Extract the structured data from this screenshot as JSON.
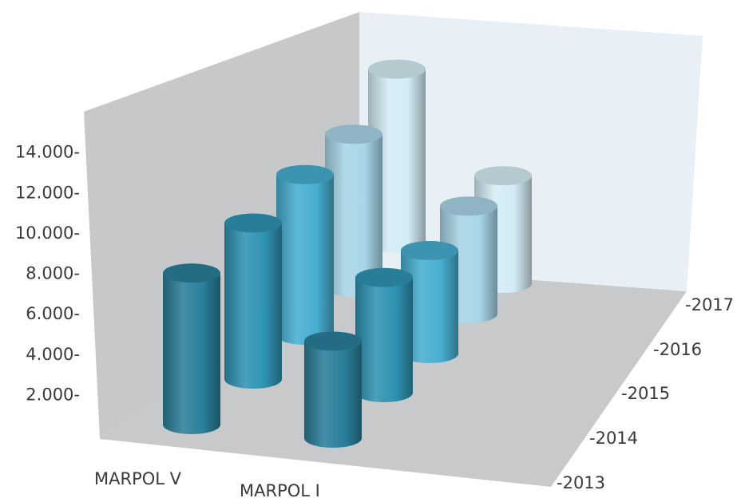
{
  "chart_data": {
    "type": "bar",
    "style": "3d-cylinder",
    "title": "",
    "xlabel": "",
    "ylabel": "",
    "categories": [
      "MARPOL V",
      "MARPOL I"
    ],
    "series": [
      {
        "name": "2013",
        "values": [
          10000,
          6400
        ],
        "color": "#2a7f9a"
      },
      {
        "name": "2014",
        "values": [
          10300,
          7600
        ],
        "color": "#2f93b3"
      },
      {
        "name": "2015",
        "values": [
          10600,
          6800
        ],
        "color": "#47aed0"
      },
      {
        "name": "2016",
        "values": [
          10100,
          7100
        ],
        "color": "#a8d5e6"
      },
      {
        "name": "2017",
        "values": [
          11500,
          7100
        ],
        "color": "#d4ecf5"
      }
    ],
    "ylim": [
      0,
      16000
    ],
    "yticks": [
      {
        "value": 2000,
        "label": "2.000-"
      },
      {
        "value": 4000,
        "label": "4.000-"
      },
      {
        "value": 6000,
        "label": "6.000-"
      },
      {
        "value": 8000,
        "label": "8.000-"
      },
      {
        "value": 10000,
        "label": "10.000-"
      },
      {
        "value": 12000,
        "label": "12.000-"
      },
      {
        "value": 14000,
        "label": "14.000-"
      }
    ],
    "depth_labels": [
      "-2013",
      "-2014",
      "-2015",
      "-2016",
      "-2017"
    ],
    "grid": false,
    "legend": "none"
  }
}
